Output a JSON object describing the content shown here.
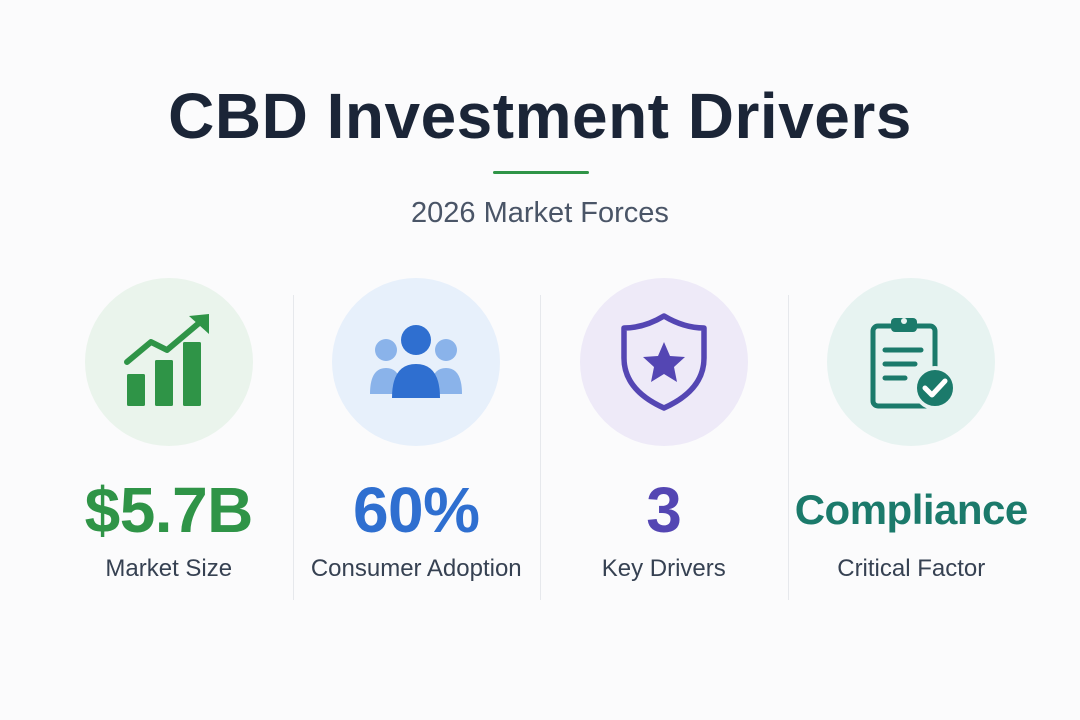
{
  "header": {
    "title": "CBD Investment Drivers",
    "subtitle": "2026 Market Forces"
  },
  "colors": {
    "green": "#2f9447",
    "blue": "#2f6fd0",
    "purple": "#5446b3",
    "teal": "#1b7a6b",
    "title": "#1b2537"
  },
  "stats": [
    {
      "value": "$5.7B",
      "label": "Market Size",
      "icon": "growth-chart-icon",
      "color": "#2f9447",
      "bg": "#eaf4ec"
    },
    {
      "value": "60%",
      "label": "Consumer Adoption",
      "icon": "people-group-icon",
      "color": "#2f6fd0",
      "bg": "#e7f0fb"
    },
    {
      "value": "3",
      "label": "Key Drivers",
      "icon": "shield-star-icon",
      "color": "#5446b3",
      "bg": "#eeeaf8"
    },
    {
      "value": "Compliance",
      "label": "Critical Factor",
      "icon": "clipboard-check-icon",
      "color": "#1b7a6b",
      "bg": "#e7f3f1"
    }
  ]
}
